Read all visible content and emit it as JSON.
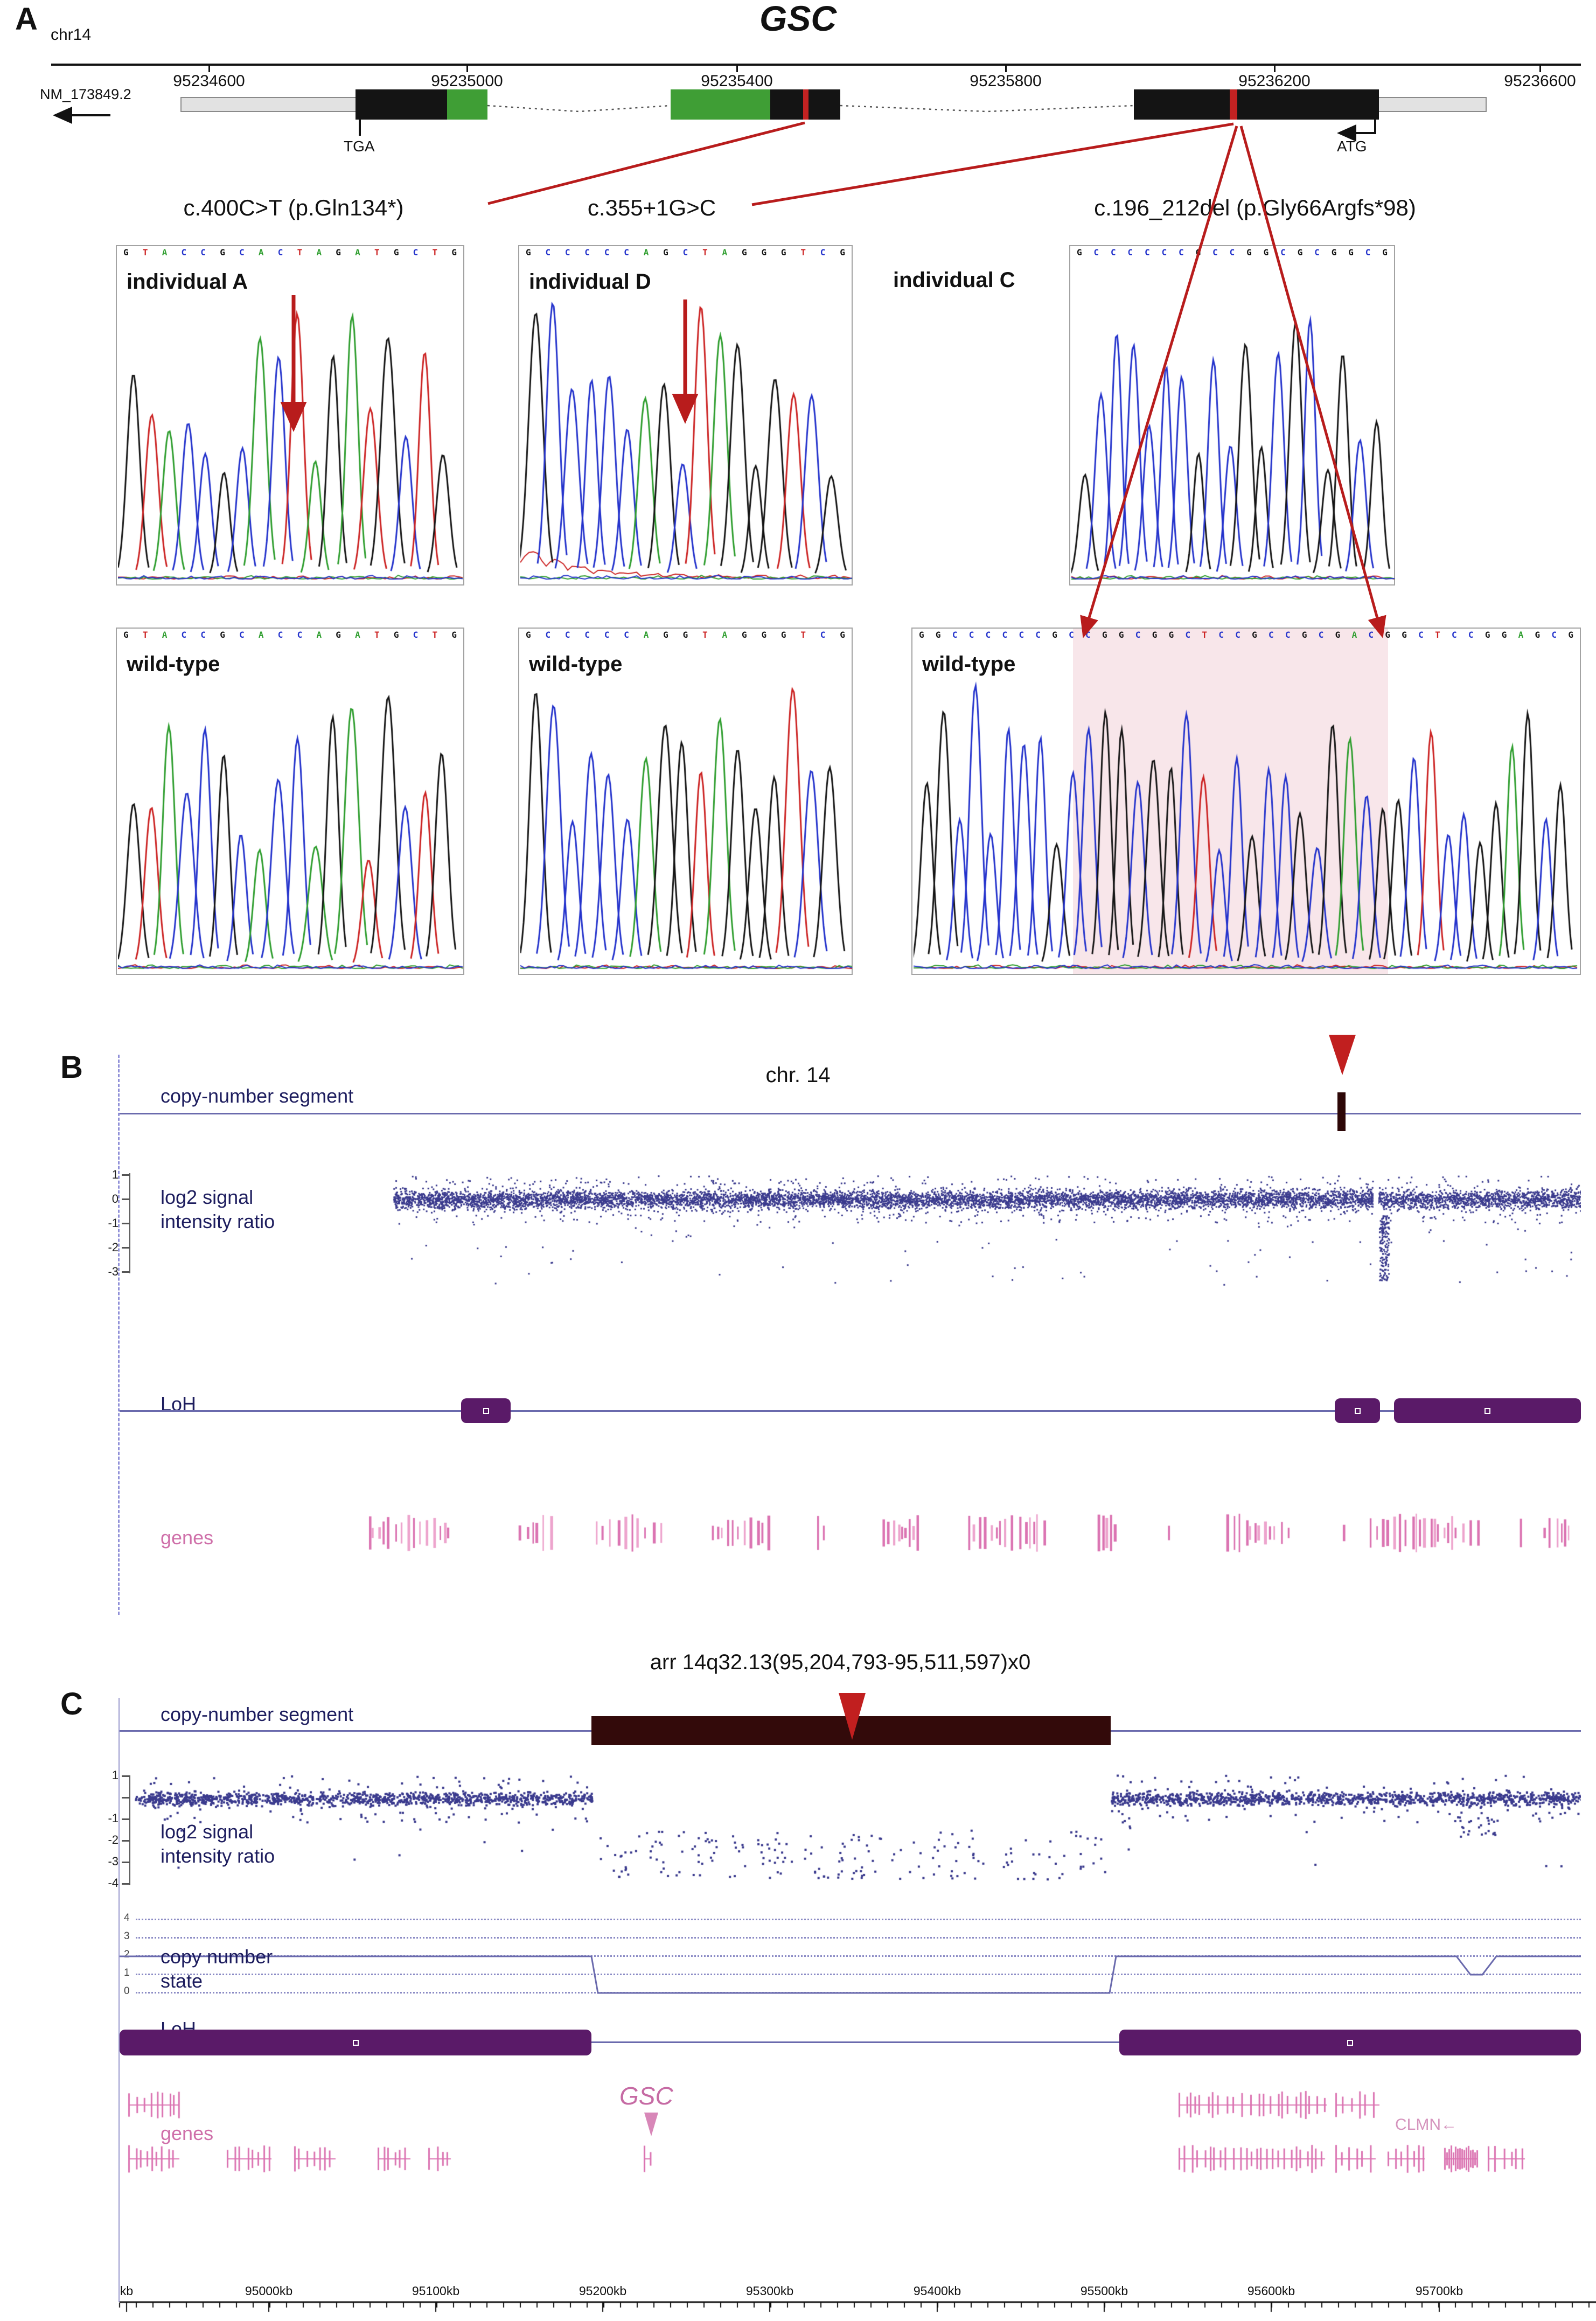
{
  "colors": {
    "bases": {
      "A": "#2f9e2f",
      "C": "#2433cc",
      "G": "#141414",
      "T": "#cc2424"
    },
    "scatter": "#3b3b8e",
    "track_line": "#6a6aad",
    "loh": "#5a1a68",
    "genes_pink": "#db74b2",
    "segment_bar": "#2d0707",
    "red_arrow": "#c11f1f",
    "deletion_highlight": "rgba(222,140,160,0.22)"
  },
  "figure": {
    "panel_a": {
      "label": "A",
      "chrom": "chr14",
      "gene": "GSC",
      "transcript": "NM_173849.2",
      "ruler_ticks": [
        "95234600",
        "95235000",
        "95235400",
        "95235800",
        "95236200",
        "95236600"
      ],
      "stop_codon": "TGA",
      "start_codon": "ATG",
      "columns": [
        {
          "mutation": "c.400C>T (p.Gln134*)",
          "sample": "individual A",
          "control": "wild-type",
          "sample_seq": "GTACCGCACTAGATGCTG",
          "control_seq": "GTACCGCACCAGATGCTG"
        },
        {
          "mutation": "c.355+1G>C",
          "sample": "individual D",
          "control": "wild-type",
          "sample_seq": "GCCCCCAGCTAGGGTCG",
          "control_seq": "GCCCCCAGGTAGGGTCG"
        },
        {
          "mutation": "c.196_212del (p.Gly66Argfs*98)",
          "sample": "individual C",
          "control": "wild-type",
          "sample_seq": "GCCCCCCGCCGGCGCGGCG",
          "control_seq": "GGCCCCCCGCCGGCGGCTCCGCCGCGACGGCTCCGGAGCG"
        }
      ]
    },
    "panel_b": {
      "label": "B",
      "title": "chr. 14",
      "track_labels": {
        "segment": "copy-number segment",
        "log2": "log2 signal intensity ratio",
        "loh": "LoH",
        "genes": "genes"
      },
      "yticks": [
        "1",
        "0",
        "-1",
        "-2",
        "-3"
      ]
    },
    "panel_c": {
      "label": "C",
      "title": "arr 14q32.13(95,204,793-95,511,597)x0",
      "track_labels": {
        "segment": "copy-number segment",
        "log2": "log2 signal intensity ratio",
        "cn_state": "copy number state",
        "loh": "LoH",
        "genes": "genes"
      },
      "log2_yticks": [
        "1",
        "-1",
        "-2",
        "-3",
        "-4"
      ],
      "cn_yticks": [
        "4",
        "3",
        "2",
        "1",
        "0"
      ],
      "gene_gsc": "GSC",
      "gene_clmn": "CLMN",
      "clmn_arrow": "←",
      "xticks": [
        "kb",
        "95000kb",
        "95100kb",
        "95200kb",
        "95300kb",
        "95400kb",
        "95500kb",
        "95600kb",
        "95700kb"
      ]
    }
  },
  "chart_data": [
    {
      "id": "panel_b_log2",
      "type": "scatter",
      "title": "chr. 14",
      "ylabel": "log2 signal intensity ratio",
      "yticks": [
        1,
        0,
        -1,
        -2,
        -3
      ],
      "ylim": [
        -3.5,
        1.5
      ],
      "baseline_log2": 0,
      "focal_deletion": {
        "approx_x_fraction": 0.86,
        "log2_min": -3.3
      },
      "loh_segments_x_fraction": [
        [
          0.235,
          0.268
        ],
        [
          0.832,
          0.864
        ],
        [
          0.873,
          1.0
        ]
      ],
      "cn_segment_marker_x_fraction": 0.835,
      "grid": false
    },
    {
      "id": "panel_c_log2",
      "type": "scatter",
      "title": "arr 14q32.13(95,204,793-95,511,597)x0",
      "ylabel": "log2 signal intensity ratio",
      "yticks": [
        1,
        -1,
        -2,
        -3,
        -4
      ],
      "xticks": [
        "kb",
        "95000kb",
        "95100kb",
        "95200kb",
        "95300kb",
        "95400kb",
        "95500kb",
        "95600kb",
        "95700kb"
      ],
      "baseline_log2": 0,
      "deletion_region": {
        "start": "95,204,793",
        "end": "95,511,597",
        "log2_mean": -2.5,
        "copy_number": 0
      },
      "genes_labeled": [
        "GSC",
        "CLMN"
      ],
      "grid": false
    },
    {
      "id": "panel_c_cn_state",
      "type": "line",
      "ylabel": "copy number state",
      "levels": [
        4,
        3,
        2,
        1,
        0
      ],
      "baseline_state": 2,
      "deleted_region_state": 0,
      "small_dip_near_95700kb_state": 1
    }
  ]
}
